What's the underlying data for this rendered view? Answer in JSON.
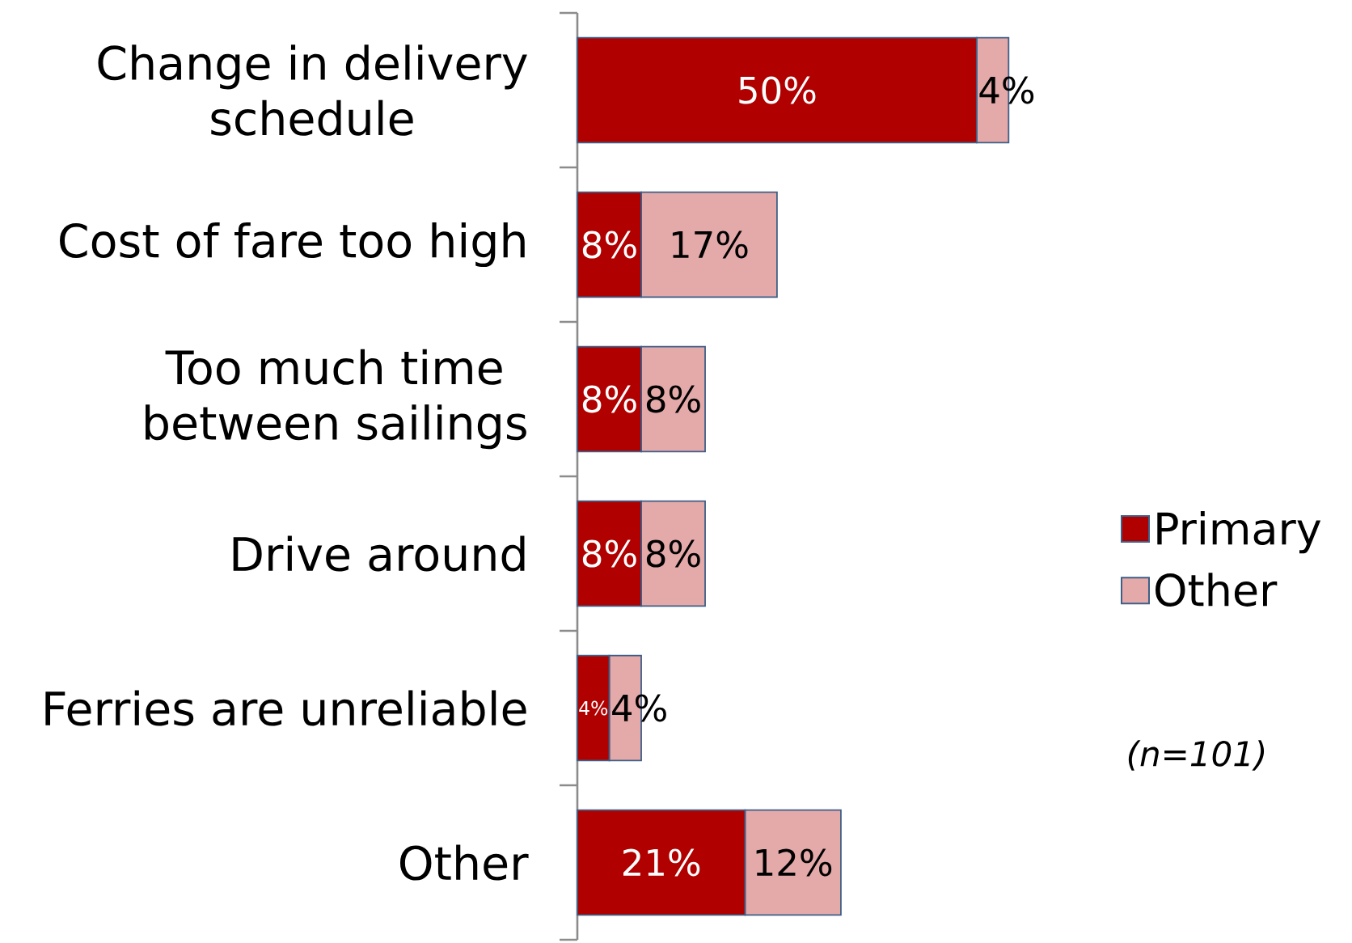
{
  "chart_data": {
    "type": "bar",
    "orientation": "horizontal",
    "stacked": true,
    "categories": [
      "Change in delivery schedule",
      "Cost of fare too high",
      "Too much time between sailings",
      "Drive around",
      "Ferries are unreliable",
      "Other"
    ],
    "series": [
      {
        "name": "Primary",
        "color": "#b00000",
        "values": [
          50,
          8,
          8,
          8,
          4,
          21
        ],
        "value_labels": [
          "50%",
          "8%",
          "8%",
          "8%",
          "4%",
          "21%"
        ]
      },
      {
        "name": "Other",
        "color": "#e4a9a9",
        "values": [
          4,
          17,
          8,
          8,
          4,
          12
        ],
        "value_labels": [
          "4%",
          "17%",
          "8%",
          "8%",
          "4%",
          "12%"
        ]
      }
    ],
    "legend": "right",
    "annotations": [
      "(n=101)"
    ]
  }
}
